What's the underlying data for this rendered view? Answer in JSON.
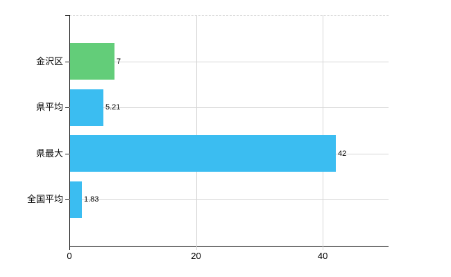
{
  "chart_data": {
    "type": "bar",
    "orientation": "horizontal",
    "title": "",
    "categories": [
      "金沢区",
      "県平均",
      "県最大",
      "全国平均"
    ],
    "values": [
      7,
      5.21,
      42,
      1.83
    ],
    "value_labels": [
      "7",
      "5.21",
      "42",
      "1.83"
    ],
    "bar_colors": [
      "#63cd79",
      "#3bbdf1",
      "#3bbdf1",
      "#3bbdf1"
    ],
    "xticks": [
      0,
      20,
      40
    ],
    "xtick_labels": [
      "0",
      "20",
      "40"
    ],
    "xlim": [
      0,
      50.4
    ],
    "grid": true,
    "legend": "none",
    "colors": {
      "grid": "#d6d6d6",
      "axis": "#000000",
      "top_border": "#d9d9d9",
      "text": "#000000",
      "background": "#ffffff"
    }
  }
}
